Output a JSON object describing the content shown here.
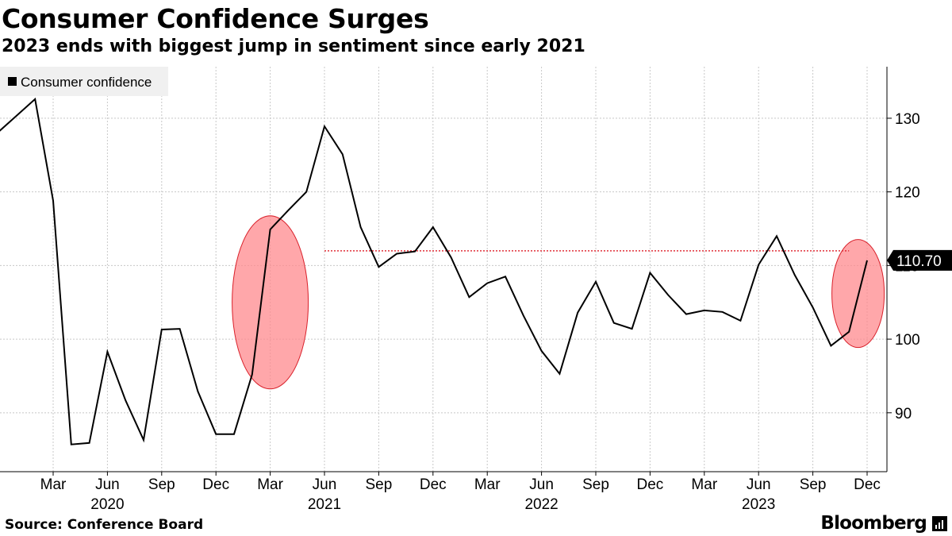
{
  "header": {
    "title": "Consumer Confidence Surges",
    "subtitle": "2023 ends with biggest jump in sentiment since early 2021"
  },
  "footer": {
    "source": "Source: Conference Board",
    "brand": "Bloomberg"
  },
  "colors": {
    "line": "#000000",
    "highlight_fill": "#ff8a8e",
    "highlight_stroke": "#d9202a",
    "reference_line": "#e0303a",
    "grid": "#c8c8c8",
    "legend_bg": "#f0f0f0",
    "last_value_bg": "#000000"
  },
  "chart_data": {
    "type": "line",
    "title": "Consumer Confidence Surges",
    "subtitle": "2023 ends with biggest jump in sentiment since early 2021",
    "legend": [
      "Consumer confidence"
    ],
    "legend_position": "top-left",
    "ylim": [
      82,
      137
    ],
    "yticks": [
      90,
      100,
      110,
      120,
      130
    ],
    "x_month_ticks": [
      {
        "label": "Mar",
        "year": 2020,
        "month": 3
      },
      {
        "label": "Jun",
        "year": 2020,
        "month": 6
      },
      {
        "label": "Sep",
        "year": 2020,
        "month": 9
      },
      {
        "label": "Dec",
        "year": 2020,
        "month": 12
      },
      {
        "label": "Mar",
        "year": 2021,
        "month": 3
      },
      {
        "label": "Jun",
        "year": 2021,
        "month": 6
      },
      {
        "label": "Sep",
        "year": 2021,
        "month": 9
      },
      {
        "label": "Dec",
        "year": 2021,
        "month": 12
      },
      {
        "label": "Mar",
        "year": 2022,
        "month": 3
      },
      {
        "label": "Jun",
        "year": 2022,
        "month": 6
      },
      {
        "label": "Sep",
        "year": 2022,
        "month": 9
      },
      {
        "label": "Dec",
        "year": 2022,
        "month": 12
      },
      {
        "label": "Mar",
        "year": 2023,
        "month": 3
      },
      {
        "label": "Jun",
        "year": 2023,
        "month": 6
      },
      {
        "label": "Sep",
        "year": 2023,
        "month": 9
      },
      {
        "label": "Dec",
        "year": 2023,
        "month": 12
      }
    ],
    "x_year_labels": [
      {
        "label": "2020",
        "year": 2020,
        "month": 6
      },
      {
        "label": "2021",
        "year": 2021,
        "month": 6
      },
      {
        "label": "2022",
        "year": 2022,
        "month": 6
      },
      {
        "label": "2023",
        "year": 2023,
        "month": 6
      }
    ],
    "series": [
      {
        "name": "Consumer confidence",
        "start": {
          "year": 2019,
          "month": 12
        },
        "values": [
          128.2,
          130.4,
          132.6,
          118.8,
          85.7,
          85.9,
          98.3,
          91.7,
          86.3,
          101.3,
          101.4,
          92.9,
          87.1,
          87.1,
          95.2,
          114.9,
          117.5,
          120.0,
          128.9,
          125.1,
          115.2,
          109.8,
          111.6,
          111.9,
          115.2,
          111.1,
          105.7,
          107.6,
          108.5,
          103.2,
          98.4,
          95.3,
          103.6,
          107.8,
          102.2,
          101.4,
          109.0,
          106.0,
          103.4,
          103.9,
          103.7,
          102.5,
          110.1,
          114.0,
          108.7,
          104.3,
          99.1,
          101.0,
          110.7
        ]
      }
    ],
    "last_value_label": "110.70",
    "reference_line": {
      "value": 112,
      "from": {
        "year": 2021,
        "month": 6
      },
      "to": {
        "year": 2023,
        "month": 11
      }
    },
    "highlights": [
      {
        "center": {
          "year": 2021,
          "month": 3
        },
        "value": 105
      },
      {
        "center": {
          "year": 2023,
          "month": 11.5
        },
        "value": 106.2
      }
    ]
  }
}
